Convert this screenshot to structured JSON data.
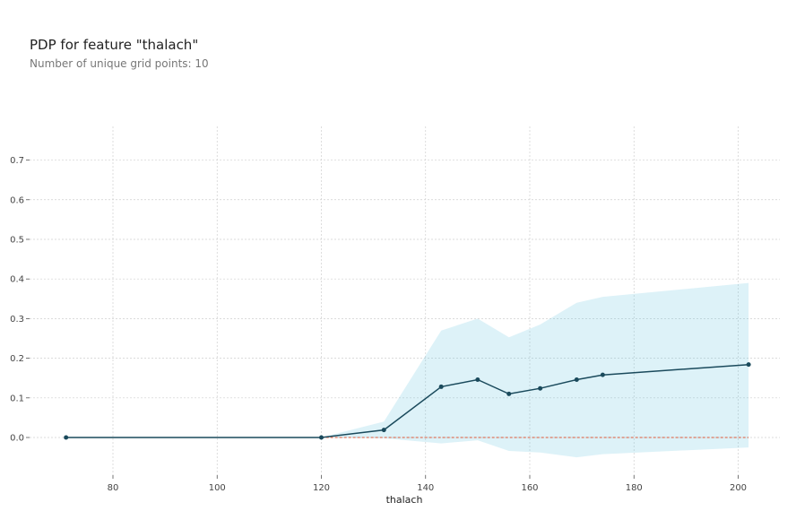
{
  "header": {
    "title": "PDP for feature \"thalach\"",
    "subtitle": "Number of unique grid points: 10"
  },
  "chart_data": {
    "type": "line",
    "title": "PDP for feature \"thalach\"",
    "subtitle": "Number of unique grid points: 10",
    "xlabel": "thalach",
    "ylabel": "",
    "xlim": [
      64,
      208
    ],
    "ylim": [
      -0.095,
      0.785
    ],
    "xticks": [
      80,
      100,
      120,
      140,
      160,
      180,
      200
    ],
    "yticks": [
      0.0,
      0.1,
      0.2,
      0.3,
      0.4,
      0.5,
      0.6,
      0.7
    ],
    "xtick_labels": [
      "80",
      "100",
      "120",
      "140",
      "160",
      "180",
      "200"
    ],
    "ytick_labels": [
      "0.0",
      "0.1",
      "0.2",
      "0.3",
      "0.4",
      "0.5",
      "0.6",
      "0.7"
    ],
    "grid": true,
    "x": [
      71,
      120,
      132,
      143,
      150,
      156,
      162,
      169,
      174,
      202
    ],
    "series": [
      {
        "values": [
          0.0,
          0.0,
          0.019,
          0.128,
          0.146,
          0.11,
          0.124,
          0.146,
          0.158,
          0.184
        ],
        "color": "#1a4a5c"
      }
    ],
    "band": {
      "upper": [
        0.0,
        0.0,
        0.04,
        0.27,
        0.3,
        0.253,
        0.285,
        0.34,
        0.355,
        0.39
      ],
      "lower": [
        0.0,
        0.0,
        -0.002,
        -0.015,
        -0.007,
        -0.034,
        -0.038,
        -0.05,
        -0.042,
        -0.025
      ],
      "color": "#66c2de"
    },
    "baseline": {
      "value": 0.0,
      "color": "#e05a3a",
      "style": "dashed"
    }
  }
}
